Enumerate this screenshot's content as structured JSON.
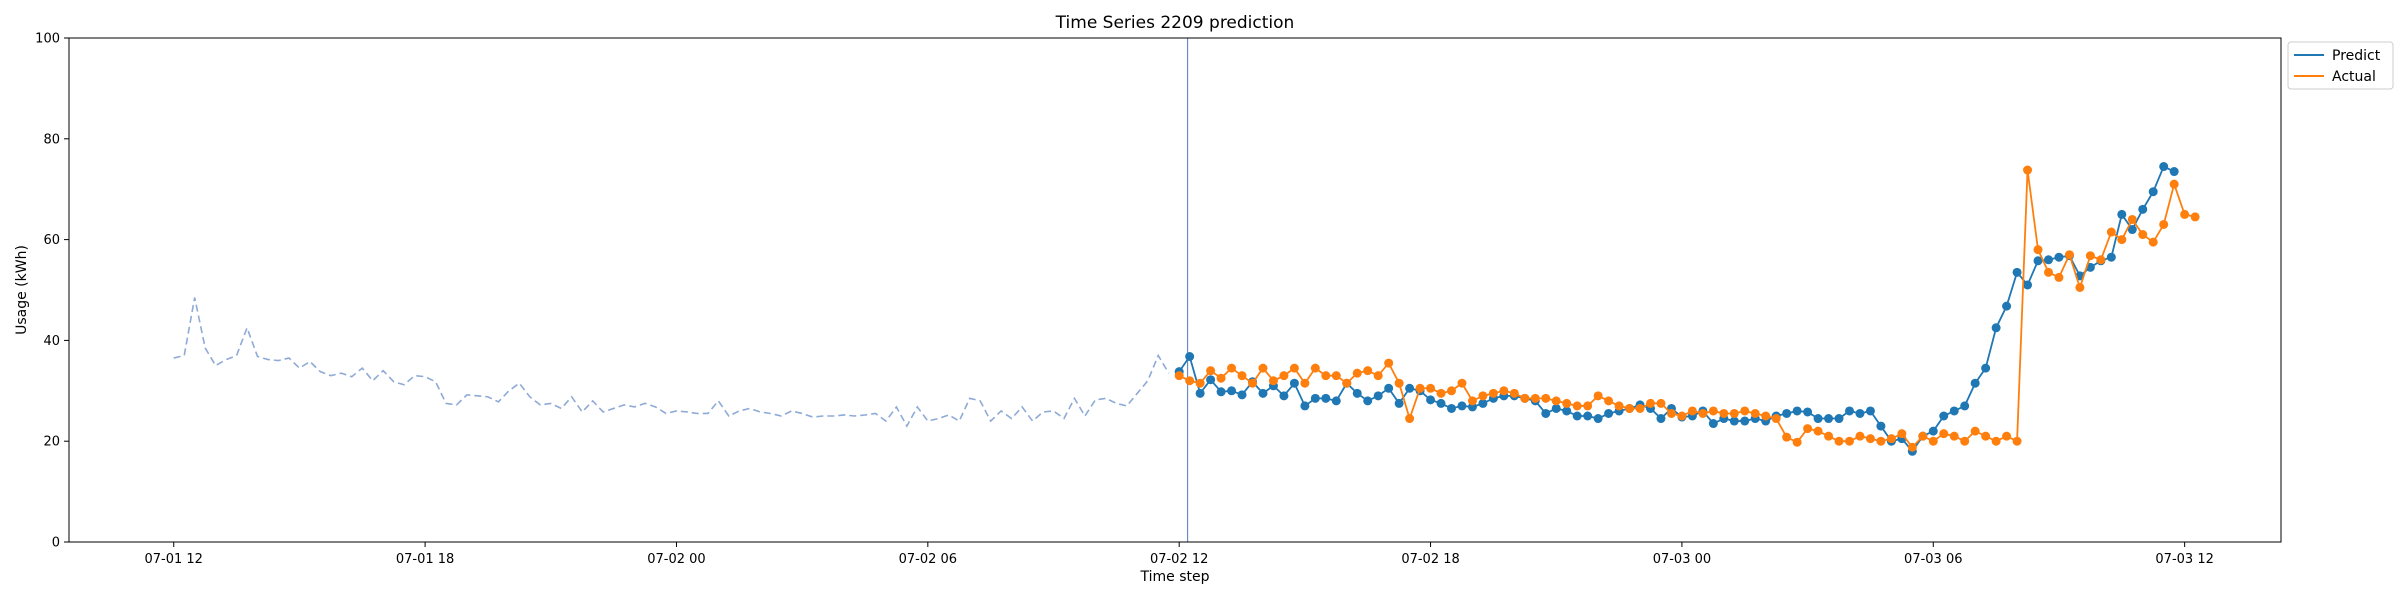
{
  "chart_data": {
    "type": "line",
    "title": "Time Series 2209 prediction",
    "xlabel": "Time step",
    "ylabel": "Usage (kWh)",
    "ylim": [
      0,
      100
    ],
    "y_ticks": [
      0,
      20,
      40,
      60,
      80,
      100
    ],
    "x_unit": "hours since 07-01 12",
    "xlim": [
      -2.5,
      50.3
    ],
    "x_ticks": [
      {
        "x": 0,
        "label": "07-01 12"
      },
      {
        "x": 6,
        "label": "07-01 18"
      },
      {
        "x": 12,
        "label": "07-02 00"
      },
      {
        "x": 18,
        "label": "07-02 06"
      },
      {
        "x": 24,
        "label": "07-02 12"
      },
      {
        "x": 30,
        "label": "07-02 18"
      },
      {
        "x": 36,
        "label": "07-03 00"
      },
      {
        "x": 42,
        "label": "07-03 06"
      },
      {
        "x": 48,
        "label": "07-03 12"
      }
    ],
    "grid": false,
    "legend_position": "top-right outside",
    "forecast_start_x": 24.2,
    "history": {
      "name": "",
      "x_start": 0,
      "x_step": 0.25,
      "values": [
        36.5,
        37.0,
        48.5,
        38.5,
        35.0,
        36.2,
        37.0,
        42.5,
        36.8,
        36.2,
        36.0,
        36.5,
        34.5,
        35.8,
        33.8,
        33.0,
        33.5,
        32.8,
        34.5,
        32.0,
        34.0,
        31.8,
        31.2,
        33.0,
        32.8,
        31.8,
        27.5,
        27.2,
        29.2,
        29.0,
        28.8,
        27.8,
        30.0,
        31.5,
        28.8,
        27.2,
        27.5,
        26.5,
        28.8,
        25.8,
        28.0,
        25.8,
        26.5,
        27.2,
        26.8,
        27.5,
        26.8,
        25.5,
        26.0,
        25.8,
        25.5,
        25.5,
        28.0,
        25.0,
        26.0,
        26.5,
        25.8,
        25.5,
        25.0,
        26.0,
        25.5,
        24.8,
        25.0,
        25.0,
        25.2,
        25.0,
        25.2,
        25.5,
        24.0,
        26.8,
        23.0,
        26.8,
        24.0,
        24.5,
        25.2,
        24.0,
        28.5,
        28.0,
        24.0,
        26.0,
        24.5,
        26.8,
        24.0,
        25.8,
        26.0,
        24.5,
        28.5,
        25.0,
        28.2,
        28.5,
        27.5,
        27.0,
        29.5,
        32.0,
        37.0,
        33.5
      ]
    },
    "series": [
      {
        "name": "Predict",
        "color": "#1f77b4",
        "x_start": 24,
        "x_step": 0.25,
        "values": [
          33.8,
          36.8,
          29.5,
          32.2,
          29.8,
          30.0,
          29.2,
          31.8,
          29.5,
          31.0,
          29.0,
          31.5,
          27.0,
          28.5,
          28.5,
          28.0,
          31.5,
          29.5,
          28.0,
          29.0,
          30.5,
          27.5,
          30.5,
          30.0,
          28.2,
          27.5,
          26.5,
          27.0,
          26.8,
          27.5,
          28.5,
          29.0,
          29.0,
          28.5,
          28.0,
          25.5,
          26.5,
          26.0,
          25.0,
          25.0,
          24.5,
          25.5,
          26.0,
          26.5,
          27.2,
          26.5,
          24.5,
          26.5,
          24.8,
          25.0,
          26.0,
          23.5,
          24.5,
          24.0,
          24.0,
          24.5,
          24.0,
          25.0,
          25.5,
          26.0,
          25.8,
          24.5,
          24.5,
          24.5,
          26.0,
          25.5,
          26.0,
          23.0,
          20.0,
          20.5,
          18.0,
          21.0,
          22.0,
          25.0,
          26.0,
          27.0,
          31.5,
          34.5,
          42.5,
          46.8,
          53.5,
          51.0,
          55.8,
          56.0,
          56.5,
          56.8,
          52.8,
          54.5,
          55.8,
          56.5,
          65.0,
          62.0,
          66.0,
          69.5,
          74.5,
          73.5
        ]
      },
      {
        "name": "Actual",
        "color": "#ff7f0e",
        "x_start": 24,
        "x_step": 0.25,
        "values": [
          33.0,
          32.0,
          31.5,
          34.0,
          32.5,
          34.5,
          33.0,
          31.5,
          34.5,
          32.0,
          33.0,
          34.5,
          31.5,
          34.5,
          33.0,
          33.0,
          31.5,
          33.5,
          34.0,
          33.0,
          35.5,
          31.5,
          24.5,
          30.5,
          30.5,
          29.5,
          30.0,
          31.5,
          28.0,
          29.0,
          29.5,
          30.0,
          29.5,
          28.5,
          28.5,
          28.5,
          28.0,
          27.5,
          27.0,
          27.0,
          29.0,
          28.0,
          27.0,
          26.5,
          26.5,
          27.5,
          27.5,
          25.5,
          25.0,
          26.0,
          25.5,
          26.0,
          25.5,
          25.5,
          26.0,
          25.5,
          25.0,
          24.5,
          20.8,
          19.8,
          22.5,
          22.0,
          21.0,
          20.0,
          20.0,
          21.0,
          20.5,
          20.0,
          20.5,
          21.5,
          18.8,
          21.0,
          20.0,
          21.5,
          21.0,
          20.0,
          22.0,
          21.0,
          20.0,
          21.0,
          20.0,
          73.8,
          58.0,
          53.5,
          52.5,
          57.0,
          50.5,
          56.8,
          56.0,
          61.5,
          60.0,
          64.0,
          61.0,
          59.5,
          63.0,
          71.0,
          65.0,
          64.5
        ]
      }
    ],
    "legend": [
      "Predict",
      "Actual"
    ]
  }
}
